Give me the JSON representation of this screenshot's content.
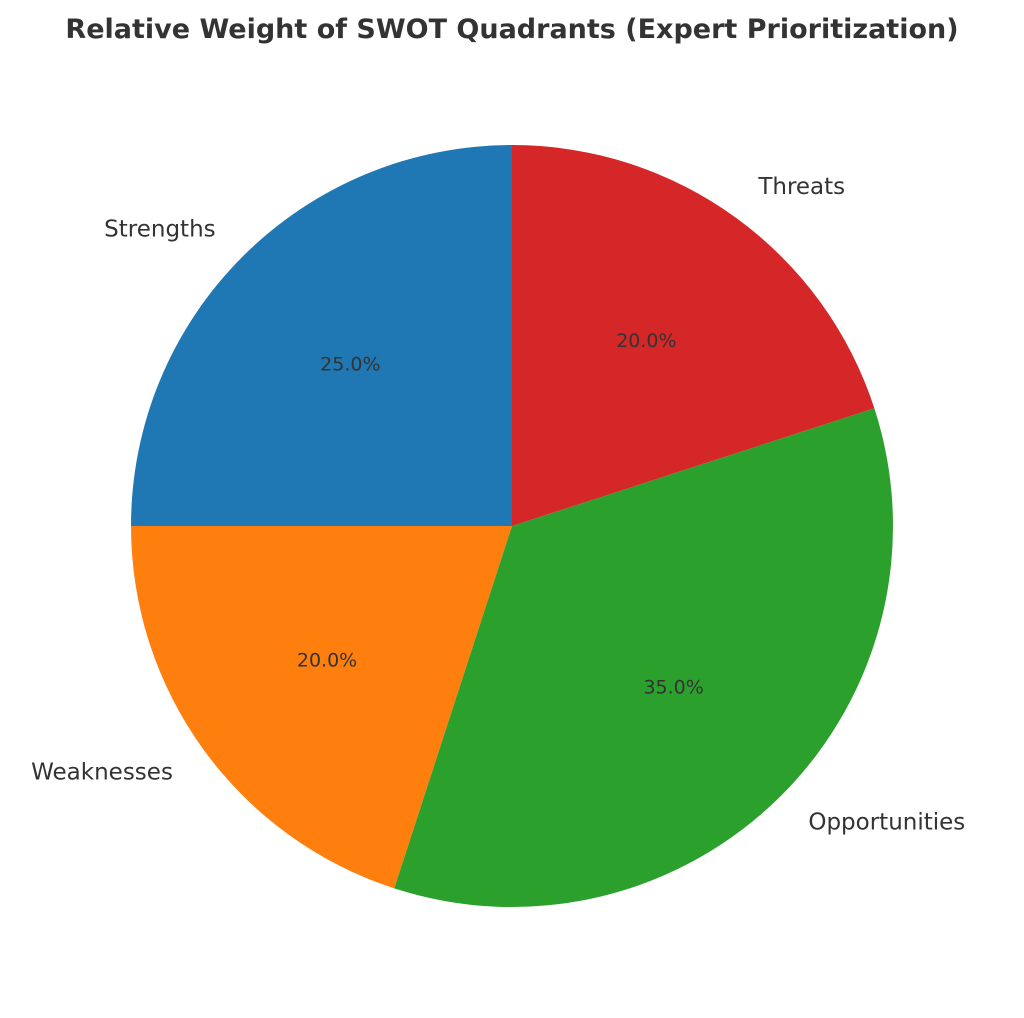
{
  "chart_data": {
    "type": "pie",
    "title": "Relative Weight of SWOT Quadrants (Expert Prioritization)",
    "slices": [
      {
        "label": "Strengths",
        "value": 25.0,
        "percent_label": "25.0%",
        "color": "#1f77b4"
      },
      {
        "label": "Weaknesses",
        "value": 20.0,
        "percent_label": "20.0%",
        "color": "#ff7f0e"
      },
      {
        "label": "Opportunities",
        "value": 35.0,
        "percent_label": "35.0%",
        "color": "#2ca02c"
      },
      {
        "label": "Threats",
        "value": 20.0,
        "percent_label": "20.0%",
        "color": "#d62728"
      }
    ],
    "start_angle_deg": 90,
    "direction": "counterclockwise",
    "legend": "none"
  }
}
